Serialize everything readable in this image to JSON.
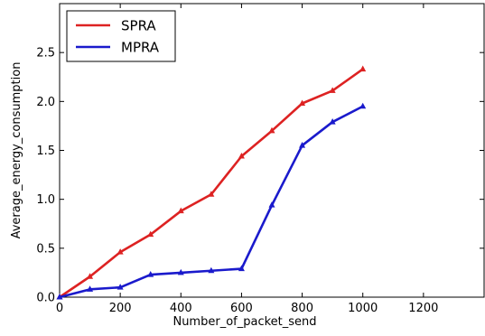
{
  "chart_data": {
    "type": "line",
    "title": "",
    "xlabel": "Number_of_packet_send",
    "ylabel": "Average_energy_consumption",
    "xlim": [
      0,
      1400
    ],
    "ylim": [
      0,
      3.0
    ],
    "xticks": [
      0,
      200,
      400,
      600,
      800,
      1000,
      1200
    ],
    "xtick_labels": [
      "0",
      "200",
      "400",
      "600",
      "800",
      "1000",
      "1200"
    ],
    "yticks": [
      0.0,
      0.5,
      1.0,
      1.5,
      2.0,
      2.5
    ],
    "ytick_labels": [
      "0.0",
      "0.5",
      "1.0",
      "1.5",
      "2.0",
      "2.5"
    ],
    "grid": false,
    "legend_position": "top-left",
    "x": [
      0,
      100,
      200,
      300,
      400,
      500,
      600,
      700,
      800,
      900,
      1000
    ],
    "series": [
      {
        "name": "SPRA",
        "color": "#dd2222",
        "values": [
          0.0,
          0.21,
          0.46,
          0.64,
          0.88,
          1.05,
          1.44,
          1.7,
          1.98,
          2.11,
          2.33
        ]
      },
      {
        "name": "MPRA",
        "color": "#1a1acc",
        "values": [
          0.0,
          0.08,
          0.1,
          0.23,
          0.25,
          0.27,
          0.29,
          0.94,
          1.55,
          1.79,
          1.95
        ]
      }
    ]
  }
}
